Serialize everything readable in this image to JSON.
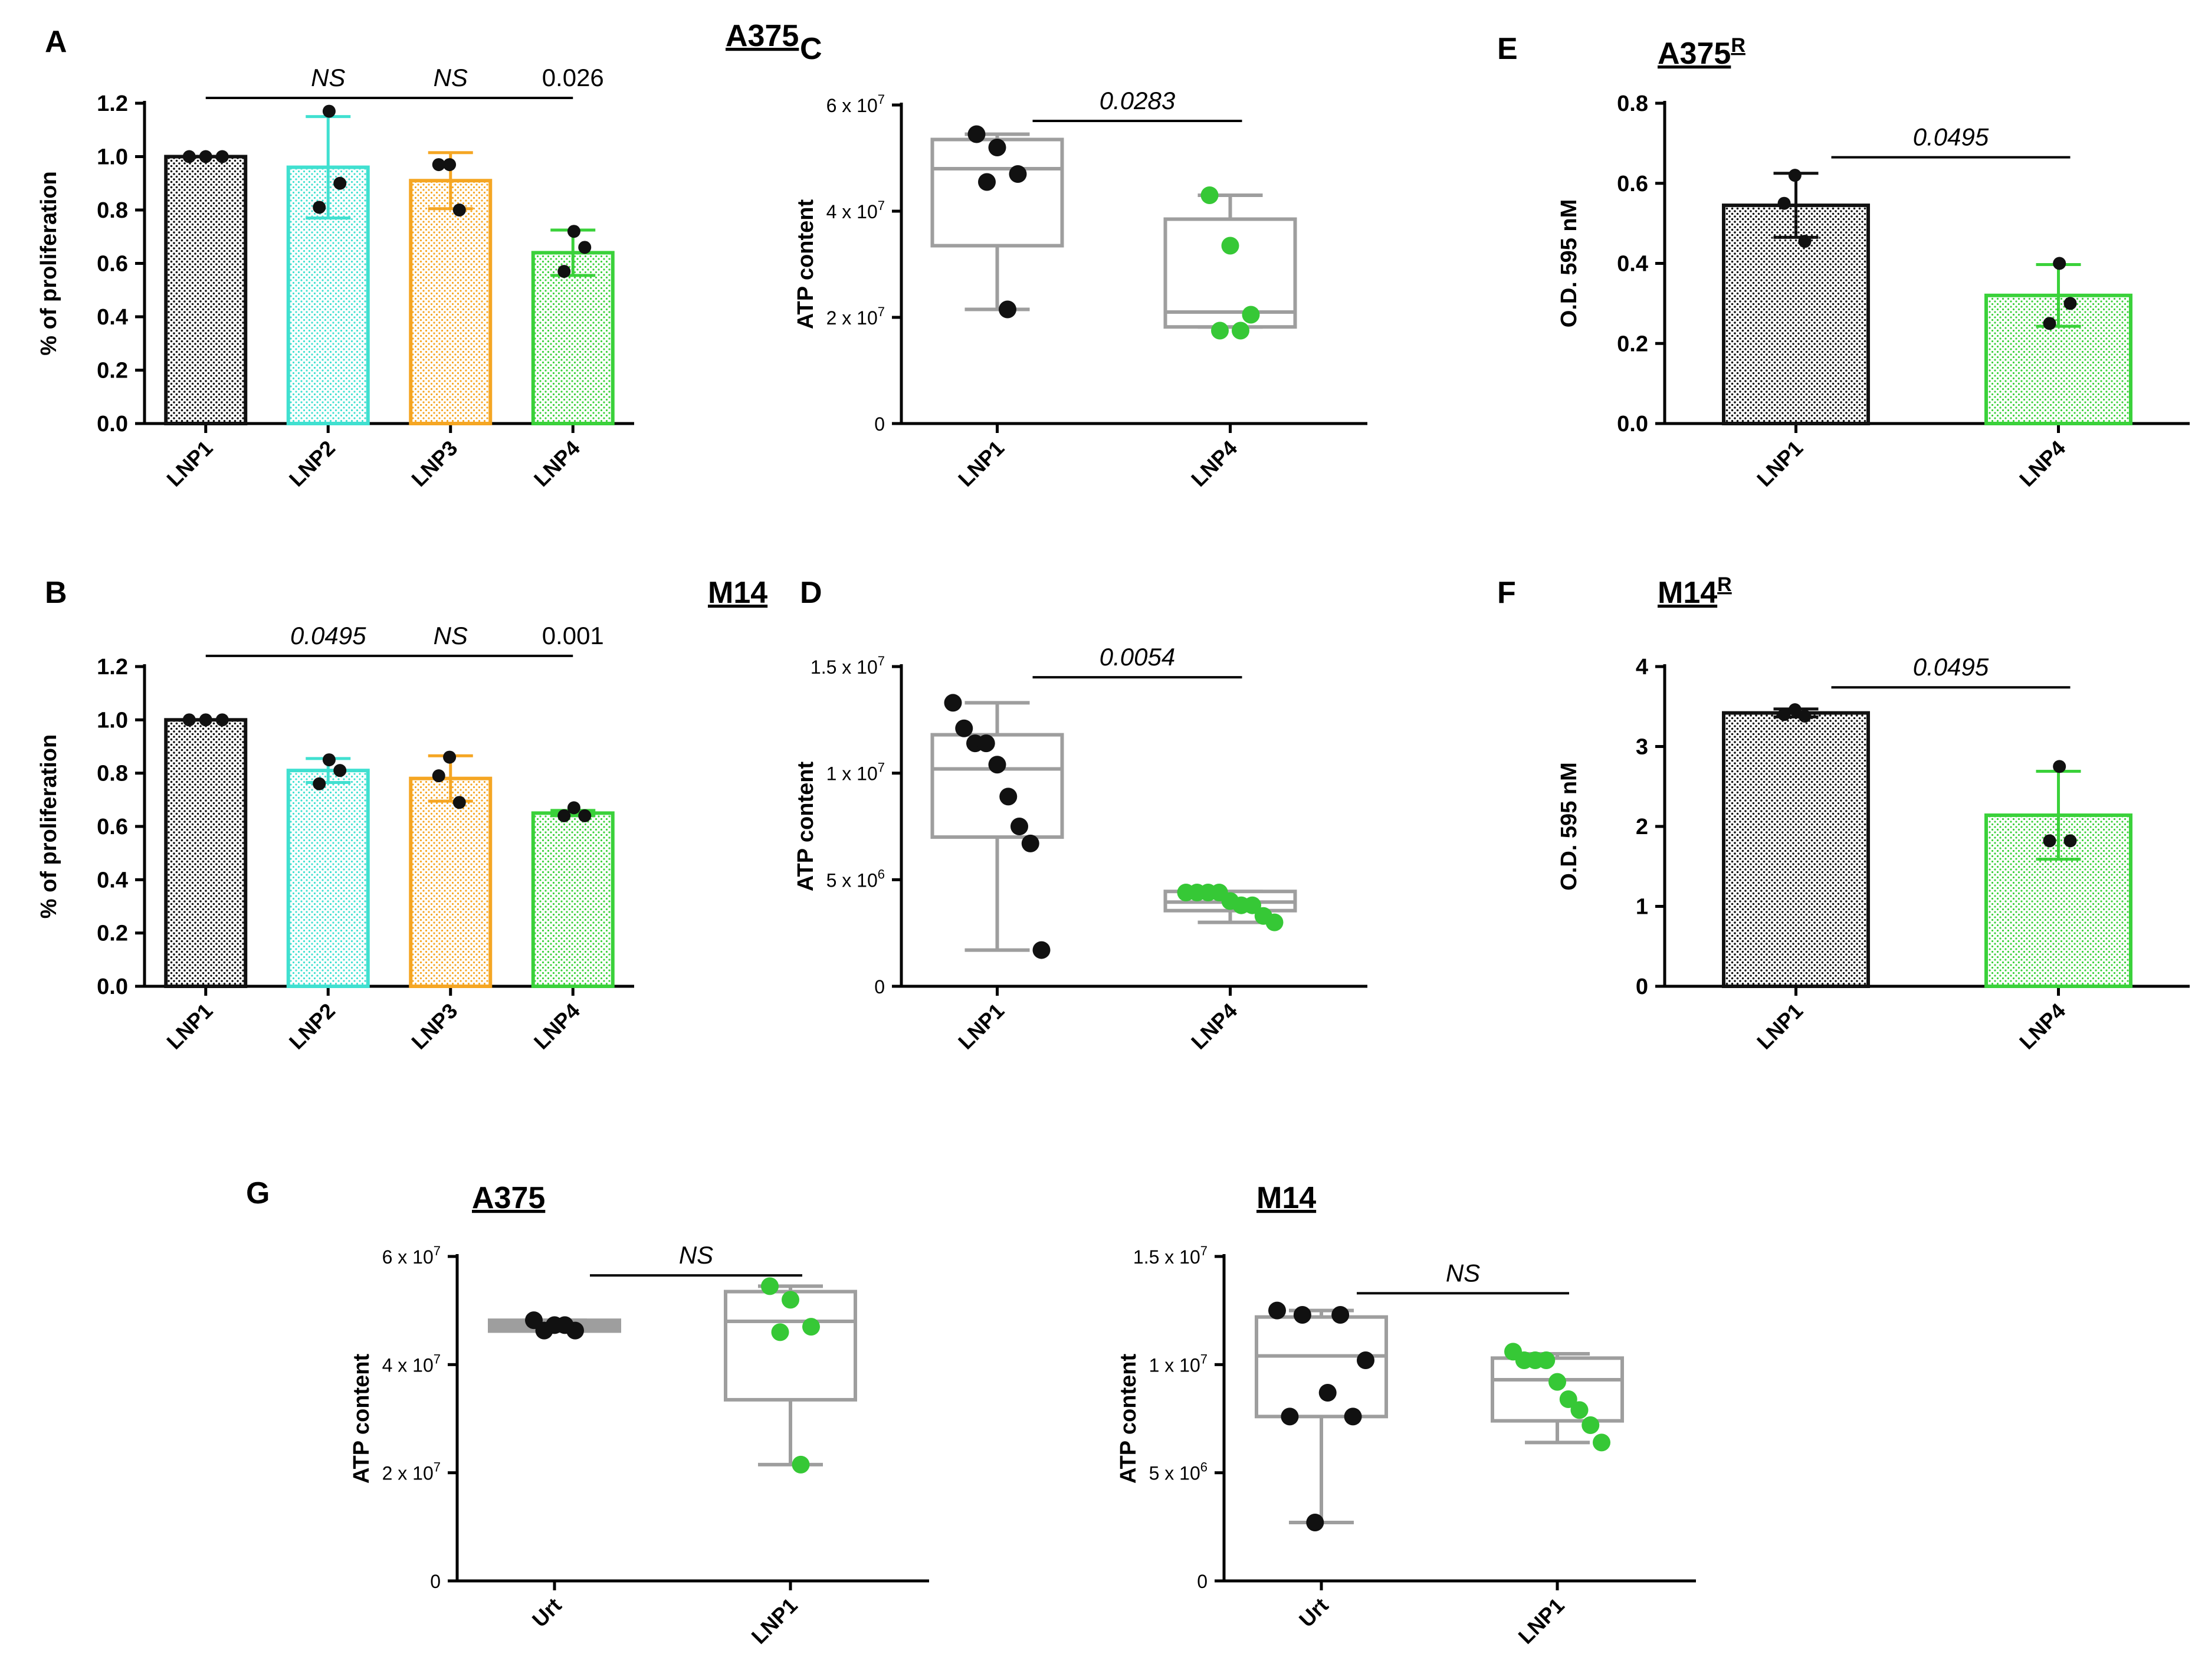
{
  "figure": {
    "panel_letters": [
      "A",
      "B",
      "C",
      "D",
      "E",
      "F",
      "G"
    ]
  },
  "colors": {
    "black": "#111111",
    "turquoise": "#40e0d0",
    "orange": "#f5a623",
    "green": "#3ad13a",
    "green_dot": "#36c836",
    "box_gray": "#9e9e9e"
  },
  "chart_data": [
    {
      "panel": "A",
      "type": "bar",
      "title": "A375",
      "title_sup": "",
      "ylabel": "% of proliferation",
      "ylim": [
        0,
        1.2
      ],
      "yticks": [
        0.0,
        0.2,
        0.4,
        0.6,
        0.8,
        1.0,
        1.2
      ],
      "ytick_labels": [
        "0.0",
        "0.2",
        "0.4",
        "0.6",
        "0.8",
        "1.0",
        "1.2"
      ],
      "categories": [
        "LNP1",
        "LNP2",
        "LNP3",
        "LNP4"
      ],
      "colors": [
        "#111111",
        "#40e0d0",
        "#f5a623",
        "#3ad13a"
      ],
      "values": [
        1.0,
        0.96,
        0.91,
        0.64
      ],
      "errors": [
        0.0,
        0.19,
        0.105,
        0.085
      ],
      "points": [
        [
          1.0,
          1.0,
          1.0
        ],
        [
          1.17,
          0.9,
          0.81
        ],
        [
          0.97,
          0.97,
          0.8
        ],
        [
          0.72,
          0.66,
          0.57
        ]
      ],
      "bracket": {
        "y": 1.22,
        "from": 0,
        "to": 3
      },
      "annotations": [
        {
          "category": 1,
          "text": "NS",
          "italic": true
        },
        {
          "category": 2,
          "text": "NS",
          "italic": true
        },
        {
          "category": 3,
          "text": "0.026",
          "italic": false
        }
      ]
    },
    {
      "panel": "B",
      "type": "bar",
      "title": "M14",
      "title_sup": "",
      "ylabel": "% of proliferation",
      "ylim": [
        0,
        1.2
      ],
      "yticks": [
        0.0,
        0.2,
        0.4,
        0.6,
        0.8,
        1.0,
        1.2
      ],
      "ytick_labels": [
        "0.0",
        "0.2",
        "0.4",
        "0.6",
        "0.8",
        "1.0",
        "1.2"
      ],
      "categories": [
        "LNP1",
        "LNP2",
        "LNP3",
        "LNP4"
      ],
      "colors": [
        "#111111",
        "#40e0d0",
        "#f5a623",
        "#3ad13a"
      ],
      "values": [
        1.0,
        0.81,
        0.78,
        0.65
      ],
      "errors": [
        0.0,
        0.045,
        0.085,
        0.01
      ],
      "points": [
        [
          1.0,
          1.0,
          1.0
        ],
        [
          0.85,
          0.81,
          0.76
        ],
        [
          0.86,
          0.79,
          0.69
        ],
        [
          0.67,
          0.64,
          0.64
        ]
      ],
      "bracket": {
        "y": 1.24,
        "from": 0,
        "to": 3
      },
      "annotations": [
        {
          "category": 1,
          "text": "0.0495",
          "italic": true
        },
        {
          "category": 2,
          "text": "NS",
          "italic": true
        },
        {
          "category": 3,
          "text": "0.001",
          "italic": false
        }
      ]
    },
    {
      "panel": "C",
      "type": "box",
      "title": "",
      "title_sup": "",
      "ylabel": "ATP content",
      "ylim": [
        0,
        60000000
      ],
      "yticks": [
        0,
        20000000,
        40000000,
        60000000
      ],
      "ytick_labels": [
        {
          "base": "0",
          "exp": ""
        },
        {
          "base": "2 x 10",
          "exp": "7"
        },
        {
          "base": "4 x 10",
          "exp": "7"
        },
        {
          "base": "6 x 10",
          "exp": "7"
        }
      ],
      "categories": [
        "LNP1",
        "LNP4"
      ],
      "dot_colors": [
        "#111111",
        "#36c836"
      ],
      "boxes": [
        {
          "min": 21500000,
          "q1": 33500000,
          "median": 48000000,
          "q3": 53500000,
          "max": 54500000
        },
        {
          "min": 18200000,
          "q1": 18200000,
          "median": 21000000,
          "q3": 38500000,
          "max": 43000000
        }
      ],
      "points": [
        [
          54500000,
          52000000,
          47000000,
          45500000,
          21500000
        ],
        [
          43000000,
          33500000,
          20500000,
          17500000,
          17500000
        ]
      ],
      "bracket": {
        "y": 57000000,
        "from": 0,
        "to": 1
      },
      "annotations": [
        {
          "text": "0.0283",
          "italic": true
        }
      ]
    },
    {
      "panel": "D",
      "type": "box",
      "title": "",
      "title_sup": "",
      "ylabel": "ATP content",
      "ylim": [
        0,
        15000000
      ],
      "yticks": [
        0,
        5000000,
        10000000,
        15000000
      ],
      "ytick_labels": [
        {
          "base": "0",
          "exp": ""
        },
        {
          "base": "5 x 10",
          "exp": "6"
        },
        {
          "base": "1 x 10",
          "exp": "7"
        },
        {
          "base": "1.5 x 10",
          "exp": "7"
        }
      ],
      "categories": [
        "LNP1",
        "LNP4"
      ],
      "dot_colors": [
        "#111111",
        "#36c836"
      ],
      "boxes": [
        {
          "min": 1700000,
          "q1": 7000000,
          "median": 10200000,
          "q3": 11800000,
          "max": 13300000
        },
        {
          "min": 3000000,
          "q1": 3550000,
          "median": 3950000,
          "q3": 4450000,
          "max": 4450000
        }
      ],
      "points": [
        [
          13300000,
          12100000,
          11400000,
          11400000,
          10400000,
          8900000,
          7500000,
          6700000,
          1700000
        ],
        [
          4400000,
          4400000,
          4400000,
          4400000,
          4000000,
          3800000,
          3800000,
          3300000,
          3000000
        ]
      ],
      "bracket": {
        "y": 14500000,
        "from": 0,
        "to": 1
      },
      "annotations": [
        {
          "text": "0.0054",
          "italic": true
        }
      ]
    },
    {
      "panel": "E",
      "type": "bar",
      "title": "A375",
      "title_sup": "R",
      "ylabel": "O.D. 595 nM",
      "ylim": [
        0,
        0.8
      ],
      "yticks": [
        0.0,
        0.2,
        0.4,
        0.6,
        0.8
      ],
      "ytick_labels": [
        "0.0",
        "0.2",
        "0.4",
        "0.6",
        "0.8"
      ],
      "categories": [
        "LNP1",
        "LNP4"
      ],
      "colors": [
        "#111111",
        "#3ad13a"
      ],
      "values": [
        0.545,
        0.32
      ],
      "errors": [
        0.08,
        0.077
      ],
      "points": [
        [
          0.62,
          0.55,
          0.455
        ],
        [
          0.4,
          0.3,
          0.25
        ]
      ],
      "bracket": {
        "y": 0.665,
        "from": 0,
        "to": 1
      },
      "annotations": [
        {
          "text": "0.0495",
          "italic": true
        }
      ]
    },
    {
      "panel": "F",
      "type": "bar",
      "title": "M14",
      "title_sup": "R",
      "ylabel": "O.D. 595 nM",
      "ylim": [
        0,
        4
      ],
      "yticks": [
        0,
        1,
        2,
        3,
        4
      ],
      "ytick_labels": [
        "0",
        "1",
        "2",
        "3",
        "4"
      ],
      "categories": [
        "LNP1",
        "LNP4"
      ],
      "colors": [
        "#111111",
        "#3ad13a"
      ],
      "values": [
        3.42,
        2.14
      ],
      "errors": [
        0.05,
        0.55
      ],
      "points": [
        [
          3.46,
          3.4,
          3.38
        ],
        [
          2.75,
          1.82,
          1.82
        ]
      ],
      "bracket": {
        "y": 3.74,
        "from": 0,
        "to": 1
      },
      "annotations": [
        {
          "text": "0.0495",
          "italic": true
        }
      ]
    },
    {
      "panel": "G1",
      "type": "box",
      "title": "A375",
      "title_sup": "",
      "ylabel": "ATP content",
      "ylim": [
        0,
        60000000
      ],
      "yticks": [
        0,
        20000000,
        40000000,
        60000000
      ],
      "ytick_labels": [
        {
          "base": "0",
          "exp": ""
        },
        {
          "base": "2 x 10",
          "exp": "7"
        },
        {
          "base": "4 x 10",
          "exp": "7"
        },
        {
          "base": "6 x 10",
          "exp": "7"
        }
      ],
      "categories": [
        "Urt",
        "LNP1"
      ],
      "dot_colors": [
        "#111111",
        "#36c836"
      ],
      "boxes": [
        {
          "min": 46200000,
          "q1": 46200000,
          "median": 47000000,
          "q3": 48200000,
          "max": 48200000
        },
        {
          "min": 21500000,
          "q1": 33500000,
          "median": 48000000,
          "q3": 53500000,
          "max": 54500000
        }
      ],
      "points": [
        [
          48200000,
          47300000,
          46300000,
          46300000,
          47300000
        ],
        [
          54500000,
          52000000,
          47000000,
          46000000,
          21500000
        ]
      ],
      "bracket": {
        "y": 56500000,
        "from": 0,
        "to": 1
      },
      "annotations": [
        {
          "text": "NS",
          "italic": true
        }
      ]
    },
    {
      "panel": "G2",
      "type": "box",
      "title": "M14",
      "title_sup": "",
      "ylabel": "ATP content",
      "ylim": [
        0,
        15000000
      ],
      "yticks": [
        0,
        5000000,
        10000000,
        15000000
      ],
      "ytick_labels": [
        {
          "base": "0",
          "exp": ""
        },
        {
          "base": "5 x 10",
          "exp": "6"
        },
        {
          "base": "1 x 10",
          "exp": "7"
        },
        {
          "base": "1.5 x 10",
          "exp": "7"
        }
      ],
      "categories": [
        "Urt",
        "LNP1"
      ],
      "dot_colors": [
        "#111111",
        "#36c836"
      ],
      "boxes": [
        {
          "min": 2700000,
          "q1": 7600000,
          "median": 10400000,
          "q3": 12200000,
          "max": 12500000
        },
        {
          "min": 6400000,
          "q1": 7400000,
          "median": 9300000,
          "q3": 10300000,
          "max": 10500000
        }
      ],
      "points": [
        [
          12500000,
          12300000,
          12300000,
          10200000,
          8700000,
          7600000,
          7600000,
          2700000
        ],
        [
          10600000,
          10200000,
          10200000,
          10200000,
          9200000,
          8400000,
          7900000,
          7200000,
          6400000
        ]
      ],
      "bracket": {
        "y": 13300000,
        "from": 0,
        "to": 1
      },
      "annotations": [
        {
          "text": "NS",
          "italic": true
        }
      ]
    }
  ]
}
